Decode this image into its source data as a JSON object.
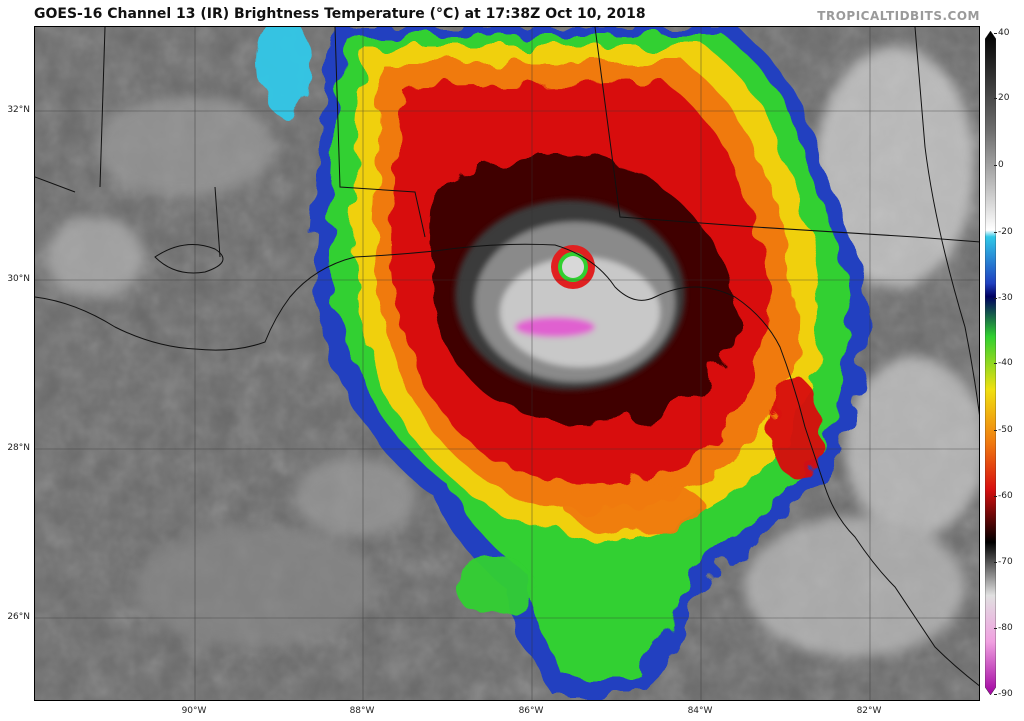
{
  "header": {
    "title": "GOES-16 Channel 13 (IR) Brightness Temperature (°C) at 17:38Z Oct 10, 2018",
    "credit": "TROPICALTIDBITS.COM"
  },
  "map": {
    "latitude_labels": [
      "32°N",
      "30°N",
      "28°N",
      "26°N"
    ],
    "longitude_labels": [
      "90°W",
      "88°W",
      "86°W",
      "84°W",
      "82°W"
    ],
    "feature": "hurricane-eye",
    "colors": {
      "background_gray": "#6a6a6a",
      "cold_cloud_gray": "#d8d8d8",
      "red": "#d81010",
      "orange": "#f07a10",
      "yellow": "#f0d010",
      "green": "#30d030",
      "blue": "#2040c0",
      "cyan": "#30c8e8",
      "magenta": "#e060d0"
    }
  },
  "colorbar": {
    "ticks": [
      "40",
      "20",
      "0",
      "-20",
      "-30",
      "-40",
      "-50",
      "-60",
      "-70",
      "-80",
      "-90"
    ],
    "range": [
      -90,
      40
    ],
    "unit": "°C"
  }
}
